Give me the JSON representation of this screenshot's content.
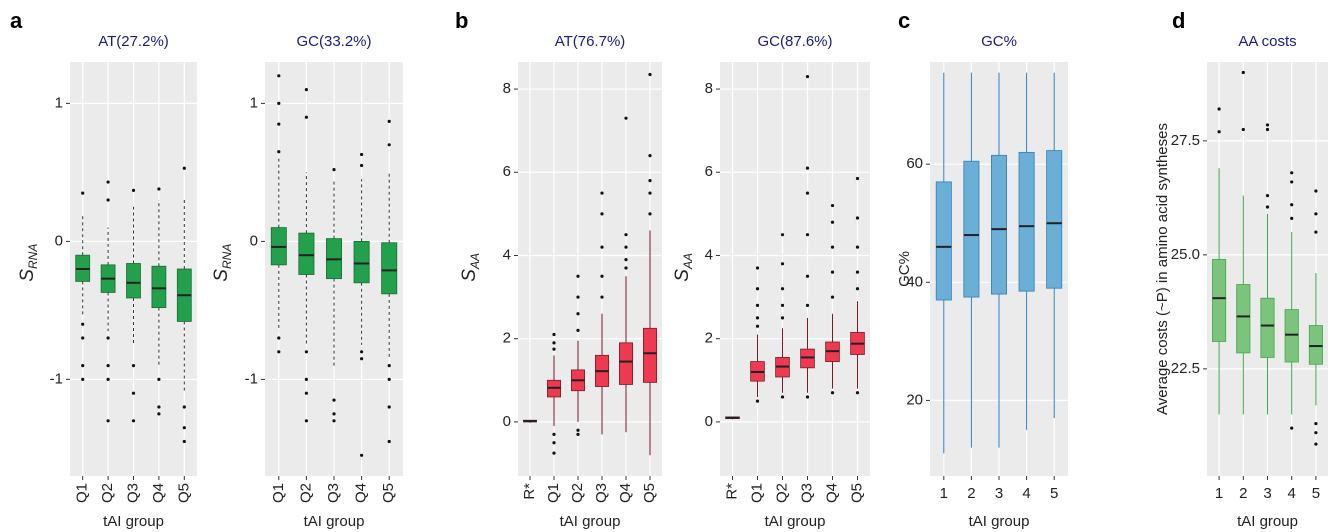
{
  "chart_data": [
    {
      "type": "box",
      "panel_label": "a",
      "title": "AT(27.2%)",
      "xlabel": "tAI group",
      "ylabel": "S",
      "ylabel_sub": "RNA",
      "categories": [
        "Q1",
        "Q2",
        "Q3",
        "Q4",
        "Q5"
      ],
      "ylim": [
        -1.7,
        1.3
      ],
      "yticks": [
        -1,
        0,
        1
      ],
      "grid": true,
      "rotate_xticks": true,
      "color": "#22a04b",
      "edge_color": "#1c6b34",
      "whisker_dash": true,
      "boxes": [
        {
          "low": -0.55,
          "q1": -0.29,
          "median": -0.2,
          "q3": -0.1,
          "high": 0.2,
          "outliers": [
            0.35,
            -0.6,
            -0.7,
            -0.9,
            -1.0
          ]
        },
        {
          "low": -0.65,
          "q1": -0.37,
          "median": -0.27,
          "q3": -0.17,
          "high": 0.1,
          "outliers": [
            0.43,
            0.3,
            -0.7,
            -0.9,
            -1.0,
            -1.3
          ]
        },
        {
          "low": -0.75,
          "q1": -0.41,
          "median": -0.3,
          "q3": -0.16,
          "high": 0.25,
          "outliers": [
            0.37,
            -0.9,
            -1.1,
            -1.3
          ]
        },
        {
          "low": -0.9,
          "q1": -0.48,
          "median": -0.34,
          "q3": -0.18,
          "high": 0.3,
          "outliers": [
            0.38,
            -1.0,
            -1.2,
            -1.25
          ]
        },
        {
          "low": -1.1,
          "q1": -0.58,
          "median": -0.39,
          "q3": -0.2,
          "high": 0.3,
          "outliers": [
            0.53,
            -1.2,
            -1.35,
            -1.45
          ]
        }
      ]
    },
    {
      "type": "box",
      "title": "GC(33.2%)",
      "xlabel": "tAI group",
      "ylabel": "S",
      "ylabel_sub": "RNA",
      "categories": [
        "Q1",
        "Q2",
        "Q3",
        "Q4",
        "Q5"
      ],
      "ylim": [
        -1.7,
        1.3
      ],
      "yticks": [
        -1,
        0,
        1
      ],
      "grid": true,
      "rotate_xticks": true,
      "color": "#22a04b",
      "edge_color": "#1c6b34",
      "whisker_dash": true,
      "boxes": [
        {
          "low": -0.65,
          "q1": -0.17,
          "median": -0.04,
          "q3": 0.1,
          "high": 0.6,
          "outliers": [
            1.2,
            1.0,
            0.85,
            0.65,
            -0.7,
            -0.8
          ]
        },
        {
          "low": -0.75,
          "q1": -0.24,
          "median": -0.1,
          "q3": 0.06,
          "high": 0.5,
          "outliers": [
            1.1,
            0.9,
            -0.8,
            -1.0,
            -1.1,
            -1.3
          ]
        },
        {
          "low": -0.9,
          "q1": -0.27,
          "median": -0.13,
          "q3": 0.02,
          "high": 0.45,
          "outliers": [
            0.52,
            -1.15,
            -1.25,
            -1.3
          ]
        },
        {
          "low": -0.75,
          "q1": -0.3,
          "median": -0.16,
          "q3": 0.0,
          "high": 0.45,
          "outliers": [
            0.63,
            0.55,
            -0.8,
            -0.85,
            -1.55
          ]
        },
        {
          "low": -0.85,
          "q1": -0.38,
          "median": -0.21,
          "q3": -0.01,
          "high": 0.5,
          "outliers": [
            0.87,
            0.7,
            -0.9,
            -1.0,
            -1.2,
            -1.45
          ]
        }
      ]
    },
    {
      "type": "box",
      "panel_label": "b",
      "title": "AT(76.7%)",
      "xlabel": "tAI group",
      "ylabel": "S",
      "ylabel_sub": "AA",
      "categories": [
        "R*",
        "Q1",
        "Q2",
        "Q3",
        "Q4",
        "Q5"
      ],
      "ylim": [
        -1.3,
        8.65
      ],
      "yticks": [
        0,
        2,
        4,
        6,
        8
      ],
      "grid": true,
      "rotate_xticks": true,
      "color": "#ee3a50",
      "edge_color": "#7a1a25",
      "whisker_dash": false,
      "boxes": [
        {
          "low": -0.02,
          "q1": 0.0,
          "median": 0.02,
          "q3": 0.04,
          "high": 0.05,
          "outliers": []
        },
        {
          "low": -0.1,
          "q1": 0.6,
          "median": 0.82,
          "q3": 1.0,
          "high": 1.6,
          "outliers": [
            2.1,
            1.9,
            1.75,
            -0.3,
            -0.5,
            -0.75
          ]
        },
        {
          "low": 0.0,
          "q1": 0.75,
          "median": 1.0,
          "q3": 1.25,
          "high": 1.95,
          "outliers": [
            3.5,
            3.0,
            2.6,
            2.2,
            -0.2,
            -0.3
          ]
        },
        {
          "low": -0.3,
          "q1": 0.85,
          "median": 1.22,
          "q3": 1.6,
          "high": 2.6,
          "outliers": [
            5.5,
            5.0,
            4.2,
            3.5,
            3.0
          ]
        },
        {
          "low": -0.25,
          "q1": 0.9,
          "median": 1.45,
          "q3": 1.9,
          "high": 3.5,
          "outliers": [
            7.3,
            4.5,
            4.2,
            3.9,
            3.7
          ]
        },
        {
          "low": -0.8,
          "q1": 0.95,
          "median": 1.65,
          "q3": 2.25,
          "high": 4.6,
          "outliers": [
            8.35,
            6.4,
            5.8,
            5.5,
            5.0
          ]
        }
      ]
    },
    {
      "type": "box",
      "title": "GC(87.6%)",
      "xlabel": "tAI group",
      "ylabel": "S",
      "ylabel_sub": "AA",
      "categories": [
        "R*",
        "Q1",
        "Q2",
        "Q3",
        "Q4",
        "Q5"
      ],
      "ylim": [
        -1.3,
        8.65
      ],
      "yticks": [
        0,
        2,
        4,
        6,
        8
      ],
      "grid": true,
      "rotate_xticks": true,
      "color": "#ee3a50",
      "edge_color": "#7a1a25",
      "whisker_dash": false,
      "boxes": [
        {
          "low": 0.06,
          "q1": 0.08,
          "median": 0.1,
          "q3": 0.12,
          "high": 0.13,
          "outliers": []
        },
        {
          "low": 0.6,
          "q1": 0.98,
          "median": 1.2,
          "q3": 1.45,
          "high": 2.1,
          "outliers": [
            3.7,
            3.2,
            2.8,
            2.5,
            2.3,
            0.5
          ]
        },
        {
          "low": 0.7,
          "q1": 1.08,
          "median": 1.33,
          "q3": 1.55,
          "high": 2.25,
          "outliers": [
            4.5,
            3.8,
            3.2,
            2.8,
            2.5,
            0.6
          ]
        },
        {
          "low": 0.7,
          "q1": 1.3,
          "median": 1.55,
          "q3": 1.75,
          "high": 2.5,
          "outliers": [
            8.3,
            6.1,
            5.5,
            4.5,
            3.5,
            2.8,
            0.6
          ]
        },
        {
          "low": 0.8,
          "q1": 1.45,
          "median": 1.7,
          "q3": 1.92,
          "high": 2.6,
          "outliers": [
            5.2,
            4.8,
            4.2,
            3.6,
            3.0,
            0.7
          ]
        },
        {
          "low": 0.8,
          "q1": 1.62,
          "median": 1.88,
          "q3": 2.15,
          "high": 2.9,
          "outliers": [
            5.85,
            4.9,
            4.2,
            3.6,
            3.2,
            0.7
          ]
        }
      ]
    },
    {
      "type": "box",
      "panel_label": "c",
      "title": "GC%",
      "xlabel": "tAI group",
      "ylabel": "GC%",
      "categories": [
        "1",
        "2",
        "3",
        "4",
        "5"
      ],
      "ylim": [
        7.2,
        77.3
      ],
      "yticks": [
        20,
        40,
        60
      ],
      "grid": true,
      "rotate_xticks": false,
      "color": "#6baed6",
      "edge_color": "#2f7fbf",
      "whisker_dash": false,
      "boxes": [
        {
          "low": 11,
          "q1": 37,
          "median": 46,
          "q3": 57,
          "high": 75.5,
          "outliers": []
        },
        {
          "low": 12,
          "q1": 37.5,
          "median": 48,
          "q3": 60.5,
          "high": 75.5,
          "outliers": []
        },
        {
          "low": 12,
          "q1": 38,
          "median": 49,
          "q3": 61.5,
          "high": 75.5,
          "outliers": []
        },
        {
          "low": 15,
          "q1": 38.5,
          "median": 49.5,
          "q3": 62,
          "high": 75.5,
          "outliers": []
        },
        {
          "low": 17,
          "q1": 39,
          "median": 50,
          "q3": 62.3,
          "high": 75.5,
          "outliers": []
        }
      ]
    },
    {
      "type": "box",
      "panel_label": "d",
      "title": "AA costs",
      "xlabel": "tAI group",
      "ylabel": "Average costs (~P) in amino acid syntheses",
      "categories": [
        "1",
        "2",
        "3",
        "4",
        "5"
      ],
      "ylim": [
        20.15,
        29.23
      ],
      "yticks": [
        22.5,
        {
          "value": 25,
          "label": "25.0"
        },
        27.5
      ],
      "grid": true,
      "rotate_xticks": false,
      "color": "#7cc47e",
      "edge_color": "#3fa84a",
      "whisker_dash": false,
      "boxes": [
        {
          "low": 21.5,
          "q1": 23.1,
          "median": 24.05,
          "q3": 24.9,
          "high": 26.9,
          "outliers": [
            28.2,
            27.7
          ]
        },
        {
          "low": 21.5,
          "q1": 22.85,
          "median": 23.65,
          "q3": 24.35,
          "high": 26.3,
          "outliers": [
            29.0,
            27.75
          ]
        },
        {
          "low": 21.5,
          "q1": 22.75,
          "median": 23.45,
          "q3": 24.05,
          "high": 25.9,
          "outliers": [
            27.85,
            27.75,
            26.3,
            26.05
          ]
        },
        {
          "low": 21.5,
          "q1": 22.65,
          "median": 23.25,
          "q3": 23.8,
          "high": 25.5,
          "outliers": [
            26.8,
            26.6,
            26.1,
            25.8,
            21.2
          ]
        },
        {
          "low": 21.7,
          "q1": 22.6,
          "median": 23.0,
          "q3": 23.45,
          "high": 24.6,
          "outliers": [
            26.4,
            25.9,
            25.5,
            21.3,
            21.1,
            20.85
          ]
        }
      ]
    }
  ]
}
